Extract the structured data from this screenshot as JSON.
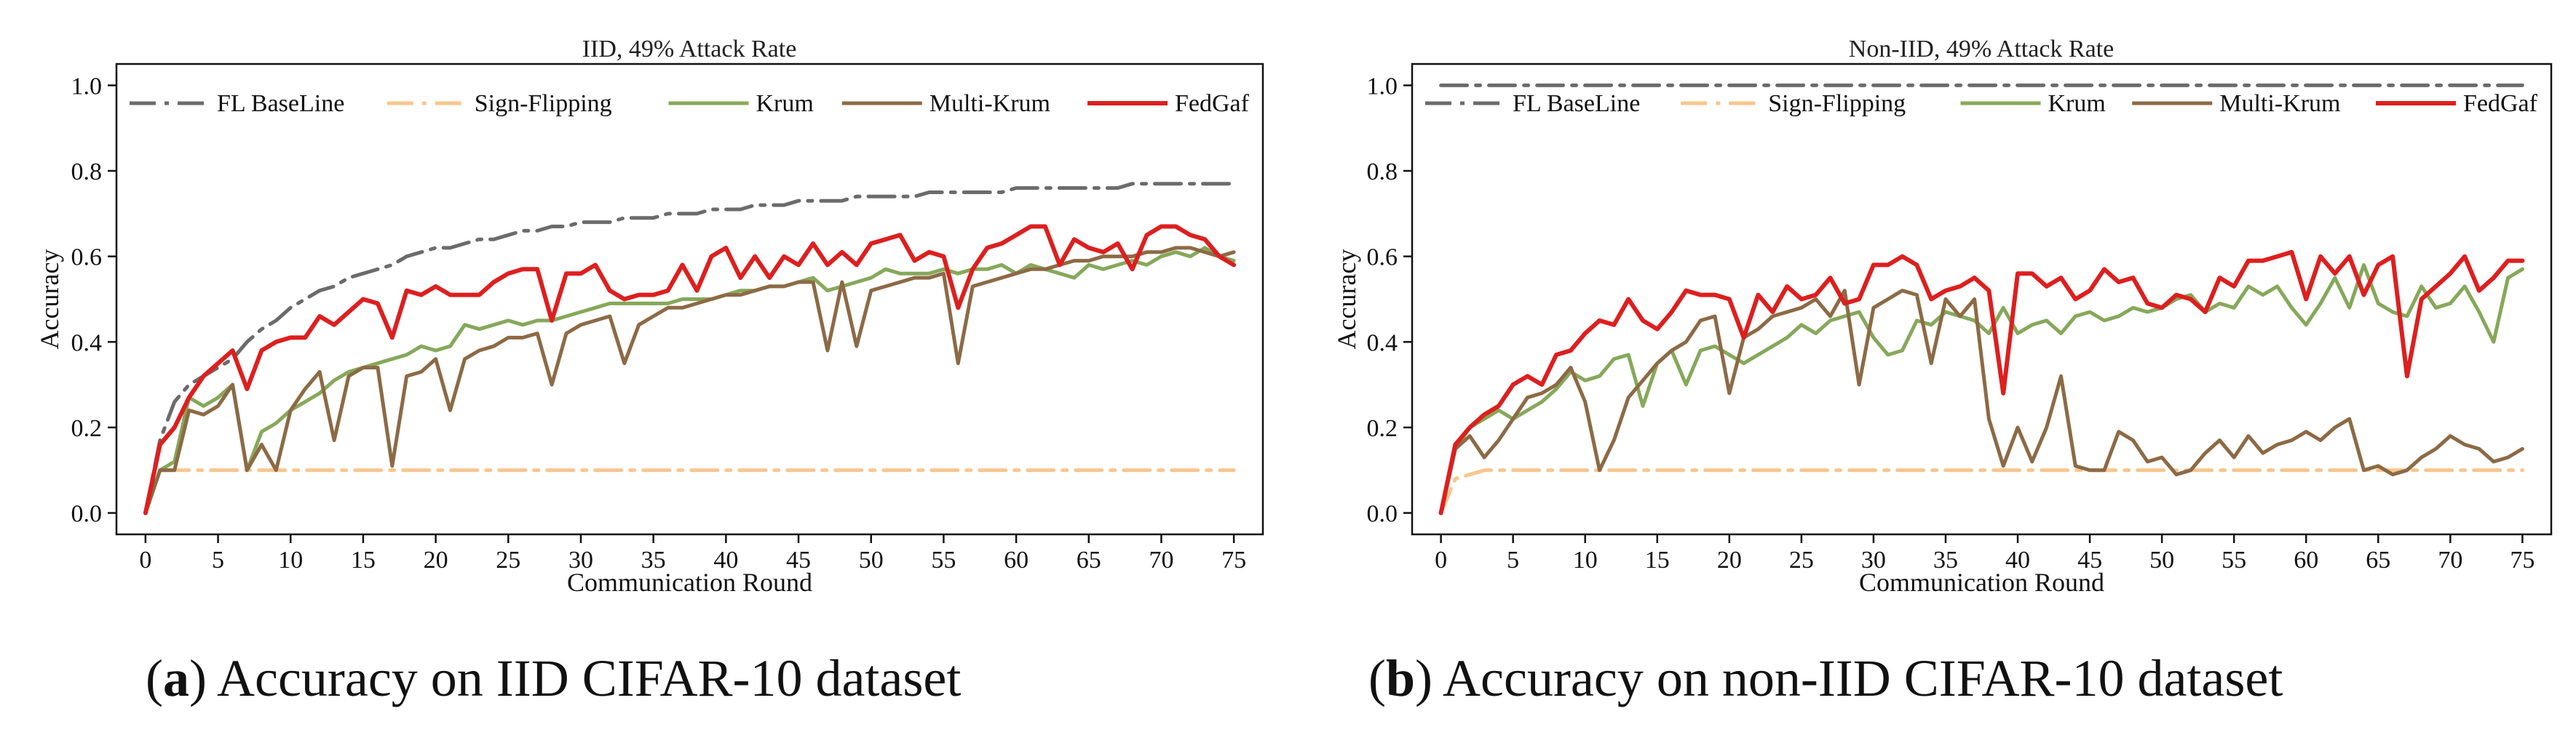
{
  "panels": [
    {
      "caption_letter": "a",
      "caption_text": "Accuracy on IID CIFAR-10 dataset",
      "chart_data": {
        "type": "line",
        "title": "IID, 49% Attack Rate",
        "xlabel": "Communication Round",
        "ylabel": "Accuracy",
        "xlim": [
          -2,
          77
        ],
        "ylim": [
          -0.05,
          1.05
        ],
        "xticks": [
          0,
          5,
          10,
          15,
          20,
          25,
          30,
          35,
          40,
          45,
          50,
          55,
          60,
          65,
          70,
          75
        ],
        "yticks": [
          0.0,
          0.2,
          0.4,
          0.6,
          0.8,
          1.0
        ],
        "ytick_labels": [
          "0.0",
          "0.2",
          "0.4",
          "0.6",
          "0.8",
          "1.0"
        ],
        "legend_position": "top",
        "series": [
          {
            "name": "FL BaseLine",
            "color": "#6b6b6b",
            "dash": "dashdot",
            "values": [
              0.0,
              0.17,
              0.26,
              0.3,
              0.32,
              0.34,
              0.36,
              0.4,
              0.43,
              0.45,
              0.48,
              0.5,
              0.52,
              0.53,
              0.55,
              0.56,
              0.57,
              0.58,
              0.6,
              0.61,
              0.62,
              0.62,
              0.63,
              0.64,
              0.64,
              0.65,
              0.66,
              0.66,
              0.67,
              0.67,
              0.68,
              0.68,
              0.68,
              0.69,
              0.69,
              0.69,
              0.7,
              0.7,
              0.7,
              0.71,
              0.71,
              0.71,
              0.72,
              0.72,
              0.72,
              0.73,
              0.73,
              0.73,
              0.73,
              0.74,
              0.74,
              0.74,
              0.74,
              0.74,
              0.75,
              0.75,
              0.75,
              0.75,
              0.75,
              0.75,
              0.76,
              0.76,
              0.76,
              0.76,
              0.76,
              0.76,
              0.76,
              0.76,
              0.77,
              0.77,
              0.77,
              0.77,
              0.77,
              0.77,
              0.77,
              0.77
            ]
          },
          {
            "name": "Sign-Flipping",
            "color": "#f7c68e",
            "dash": "dashdot",
            "values": [
              0.0,
              0.1,
              0.1,
              0.1,
              0.1,
              0.1,
              0.1,
              0.1,
              0.1,
              0.1,
              0.1,
              0.1,
              0.1,
              0.1,
              0.1,
              0.1,
              0.1,
              0.1,
              0.1,
              0.1,
              0.1,
              0.1,
              0.1,
              0.1,
              0.1,
              0.1,
              0.1,
              0.1,
              0.1,
              0.1,
              0.1,
              0.1,
              0.1,
              0.1,
              0.1,
              0.1,
              0.1,
              0.1,
              0.1,
              0.1,
              0.1,
              0.1,
              0.1,
              0.1,
              0.1,
              0.1,
              0.1,
              0.1,
              0.1,
              0.1,
              0.1,
              0.1,
              0.1,
              0.1,
              0.1,
              0.1,
              0.1,
              0.1,
              0.1,
              0.1,
              0.1,
              0.1,
              0.1,
              0.1,
              0.1,
              0.1,
              0.1,
              0.1,
              0.1,
              0.1,
              0.1,
              0.1,
              0.1,
              0.1,
              0.1,
              0.1
            ]
          },
          {
            "name": "Krum",
            "color": "#86a85a",
            "dash": "solid",
            "values": [
              0.0,
              0.1,
              0.12,
              0.27,
              0.25,
              0.27,
              0.3,
              0.1,
              0.19,
              0.21,
              0.24,
              0.26,
              0.28,
              0.31,
              0.33,
              0.34,
              0.35,
              0.36,
              0.37,
              0.39,
              0.38,
              0.39,
              0.44,
              0.43,
              0.44,
              0.45,
              0.44,
              0.45,
              0.45,
              0.46,
              0.47,
              0.48,
              0.49,
              0.49,
              0.49,
              0.49,
              0.49,
              0.5,
              0.5,
              0.5,
              0.51,
              0.52,
              0.52,
              0.53,
              0.53,
              0.54,
              0.55,
              0.52,
              0.53,
              0.54,
              0.55,
              0.57,
              0.56,
              0.56,
              0.56,
              0.57,
              0.56,
              0.57,
              0.57,
              0.58,
              0.56,
              0.58,
              0.57,
              0.56,
              0.55,
              0.58,
              0.57,
              0.58,
              0.59,
              0.58,
              0.6,
              0.61,
              0.6,
              0.62,
              0.6,
              0.59
            ]
          },
          {
            "name": "Multi-Krum",
            "color": "#8c6a45",
            "dash": "solid",
            "values": [
              0.0,
              0.1,
              0.1,
              0.24,
              0.23,
              0.25,
              0.3,
              0.1,
              0.16,
              0.1,
              0.24,
              0.29,
              0.33,
              0.17,
              0.32,
              0.34,
              0.34,
              0.11,
              0.32,
              0.33,
              0.36,
              0.24,
              0.36,
              0.38,
              0.39,
              0.41,
              0.41,
              0.42,
              0.3,
              0.42,
              0.44,
              0.45,
              0.46,
              0.35,
              0.44,
              0.46,
              0.48,
              0.48,
              0.49,
              0.5,
              0.51,
              0.51,
              0.52,
              0.53,
              0.53,
              0.54,
              0.54,
              0.38,
              0.54,
              0.39,
              0.52,
              0.53,
              0.54,
              0.55,
              0.55,
              0.56,
              0.35,
              0.53,
              0.54,
              0.55,
              0.56,
              0.57,
              0.57,
              0.58,
              0.59,
              0.59,
              0.6,
              0.6,
              0.6,
              0.61,
              0.61,
              0.62,
              0.62,
              0.61,
              0.6,
              0.61
            ]
          },
          {
            "name": "FedGaf",
            "color": "#dd1f1f",
            "dash": "solid",
            "values": [
              0.0,
              0.16,
              0.2,
              0.27,
              0.32,
              0.35,
              0.38,
              0.29,
              0.38,
              0.4,
              0.41,
              0.41,
              0.46,
              0.44,
              0.47,
              0.5,
              0.49,
              0.41,
              0.52,
              0.51,
              0.53,
              0.51,
              0.51,
              0.51,
              0.54,
              0.56,
              0.57,
              0.57,
              0.45,
              0.56,
              0.56,
              0.58,
              0.52,
              0.5,
              0.51,
              0.51,
              0.52,
              0.58,
              0.52,
              0.6,
              0.62,
              0.55,
              0.6,
              0.55,
              0.6,
              0.58,
              0.63,
              0.58,
              0.61,
              0.58,
              0.63,
              0.64,
              0.65,
              0.59,
              0.61,
              0.6,
              0.48,
              0.57,
              0.62,
              0.63,
              0.65,
              0.67,
              0.67,
              0.58,
              0.64,
              0.62,
              0.61,
              0.63,
              0.57,
              0.65,
              0.67,
              0.67,
              0.65,
              0.64,
              0.6,
              0.58
            ]
          }
        ]
      }
    },
    {
      "caption_letter": "b",
      "caption_text": "Accuracy on non-IID CIFAR-10 dataset",
      "chart_data": {
        "type": "line",
        "title": "Non-IID, 49% Attack Rate",
        "xlabel": "Communication Round",
        "ylabel": "Accuracy",
        "xlim": [
          -2,
          77
        ],
        "ylim": [
          -0.05,
          1.05
        ],
        "xticks": [
          0,
          5,
          10,
          15,
          20,
          25,
          30,
          35,
          40,
          45,
          50,
          55,
          60,
          65,
          70,
          75
        ],
        "yticks": [
          0.0,
          0.2,
          0.4,
          0.6,
          0.8,
          1.0
        ],
        "ytick_labels": [
          "0.0",
          "0.2",
          "0.4",
          "0.6",
          "0.8",
          "1.0"
        ],
        "legend_position": "top",
        "series": [
          {
            "name": "FL BaseLine",
            "color": "#6b6b6b",
            "dash": "dashdot",
            "values": [
              1.0,
              1.0,
              1.0,
              1.0,
              1.0,
              1.0,
              1.0,
              1.0,
              1.0,
              1.0,
              1.0,
              1.0,
              1.0,
              1.0,
              1.0,
              1.0,
              1.0,
              1.0,
              1.0,
              1.0,
              1.0,
              1.0,
              1.0,
              1.0,
              1.0,
              1.0,
              1.0,
              1.0,
              1.0,
              1.0,
              1.0,
              1.0,
              1.0,
              1.0,
              1.0,
              1.0,
              1.0,
              1.0,
              1.0,
              1.0,
              1.0,
              1.0,
              1.0,
              1.0,
              1.0,
              1.0,
              1.0,
              1.0,
              1.0,
              1.0,
              1.0,
              1.0,
              1.0,
              1.0,
              1.0,
              1.0,
              1.0,
              1.0,
              1.0,
              1.0,
              1.0,
              1.0,
              1.0,
              1.0,
              1.0,
              1.0,
              1.0,
              1.0,
              1.0,
              1.0,
              1.0,
              1.0,
              1.0,
              1.0,
              1.0,
              1.0
            ]
          },
          {
            "name": "Sign-Flipping",
            "color": "#f7c68e",
            "dash": "dashdot",
            "values": [
              0.0,
              0.08,
              0.09,
              0.1,
              0.1,
              0.1,
              0.1,
              0.1,
              0.1,
              0.1,
              0.1,
              0.1,
              0.1,
              0.1,
              0.1,
              0.1,
              0.1,
              0.1,
              0.1,
              0.1,
              0.1,
              0.1,
              0.1,
              0.1,
              0.1,
              0.1,
              0.1,
              0.1,
              0.1,
              0.1,
              0.1,
              0.1,
              0.1,
              0.1,
              0.1,
              0.1,
              0.1,
              0.1,
              0.1,
              0.1,
              0.1,
              0.1,
              0.1,
              0.1,
              0.1,
              0.1,
              0.1,
              0.1,
              0.1,
              0.1,
              0.1,
              0.1,
              0.1,
              0.1,
              0.1,
              0.1,
              0.1,
              0.1,
              0.1,
              0.1,
              0.1,
              0.1,
              0.1,
              0.1,
              0.1,
              0.1,
              0.1,
              0.1,
              0.1,
              0.1,
              0.1,
              0.1,
              0.1,
              0.1,
              0.1,
              0.1
            ]
          },
          {
            "name": "Krum",
            "color": "#86a85a",
            "dash": "solid",
            "values": [
              0.0,
              0.15,
              0.2,
              0.22,
              0.24,
              0.22,
              0.24,
              0.26,
              0.29,
              0.33,
              0.31,
              0.32,
              0.36,
              0.37,
              0.25,
              0.35,
              0.38,
              0.3,
              0.38,
              0.39,
              0.37,
              0.35,
              0.37,
              0.39,
              0.41,
              0.44,
              0.42,
              0.45,
              0.46,
              0.47,
              0.41,
              0.37,
              0.38,
              0.45,
              0.44,
              0.47,
              0.46,
              0.45,
              0.42,
              0.48,
              0.42,
              0.44,
              0.45,
              0.42,
              0.46,
              0.47,
              0.45,
              0.46,
              0.48,
              0.47,
              0.48,
              0.5,
              0.51,
              0.47,
              0.49,
              0.48,
              0.53,
              0.51,
              0.53,
              0.48,
              0.44,
              0.49,
              0.55,
              0.48,
              0.58,
              0.49,
              0.47,
              0.46,
              0.53,
              0.48,
              0.49,
              0.53,
              0.47,
              0.4,
              0.55,
              0.57
            ]
          },
          {
            "name": "Multi-Krum",
            "color": "#8c6a45",
            "dash": "solid",
            "values": [
              0.0,
              0.15,
              0.18,
              0.13,
              0.17,
              0.22,
              0.27,
              0.28,
              0.3,
              0.34,
              0.26,
              0.1,
              0.17,
              0.27,
              0.31,
              0.35,
              0.38,
              0.4,
              0.45,
              0.46,
              0.28,
              0.41,
              0.43,
              0.46,
              0.47,
              0.48,
              0.5,
              0.46,
              0.52,
              0.3,
              0.48,
              0.5,
              0.52,
              0.51,
              0.35,
              0.5,
              0.46,
              0.5,
              0.22,
              0.11,
              0.2,
              0.12,
              0.2,
              0.32,
              0.11,
              0.1,
              0.1,
              0.19,
              0.17,
              0.12,
              0.13,
              0.09,
              0.1,
              0.14,
              0.17,
              0.13,
              0.18,
              0.14,
              0.16,
              0.17,
              0.19,
              0.17,
              0.2,
              0.22,
              0.1,
              0.11,
              0.09,
              0.1,
              0.13,
              0.15,
              0.18,
              0.16,
              0.15,
              0.12,
              0.13,
              0.15
            ]
          },
          {
            "name": "FedGaf",
            "color": "#dd1f1f",
            "dash": "solid",
            "values": [
              0.0,
              0.16,
              0.2,
              0.23,
              0.25,
              0.3,
              0.32,
              0.3,
              0.37,
              0.38,
              0.42,
              0.45,
              0.44,
              0.5,
              0.45,
              0.43,
              0.47,
              0.52,
              0.51,
              0.51,
              0.5,
              0.41,
              0.51,
              0.47,
              0.53,
              0.5,
              0.51,
              0.55,
              0.49,
              0.5,
              0.58,
              0.58,
              0.6,
              0.58,
              0.5,
              0.52,
              0.53,
              0.55,
              0.52,
              0.28,
              0.56,
              0.56,
              0.53,
              0.55,
              0.5,
              0.52,
              0.57,
              0.54,
              0.55,
              0.49,
              0.48,
              0.51,
              0.5,
              0.47,
              0.55,
              0.53,
              0.59,
              0.59,
              0.6,
              0.61,
              0.5,
              0.6,
              0.56,
              0.6,
              0.51,
              0.58,
              0.6,
              0.32,
              0.5,
              0.53,
              0.56,
              0.6,
              0.52,
              0.55,
              0.59,
              0.59
            ]
          }
        ]
      }
    }
  ]
}
